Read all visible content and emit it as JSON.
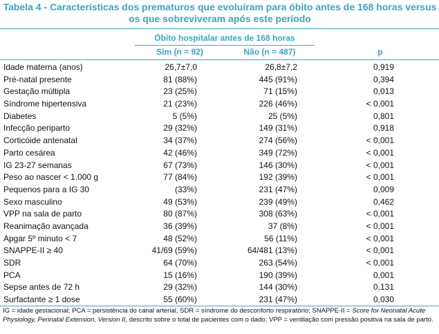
{
  "title": "Tabela 4 - Características dos prematuros que evoluíram para óbito antes de 168 horas versus os que sobreviveram após este período",
  "group_header": "Óbito hospitalar antes de 168 horas",
  "columns": {
    "sim": "Sim (n = 92)",
    "nao": "Não (n = 487)",
    "p": "p"
  },
  "rows": [
    {
      "label": "Idade materna (anos)",
      "sim": "26,7±7,0",
      "nao": "26,8±7,2",
      "p": "0,919"
    },
    {
      "label": "Pré-natal presente",
      "sim": "81 (88%)",
      "nao": "445 (91%)",
      "p": "0,394"
    },
    {
      "label": "Gestação múltipla",
      "sim": "23 (25%)",
      "nao": "71 (15%)",
      "p": "0,013"
    },
    {
      "label": "Síndrome hipertensiva",
      "sim": "21 (23%)",
      "nao": "226 (46%)",
      "p": "< 0,001"
    },
    {
      "label": "Diabetes",
      "sim": "5 (5%)",
      "nao": "25 (5%)",
      "p": "0,801"
    },
    {
      "label": "Infecção periparto",
      "sim": "29 (32%)",
      "nao": "149 (31%)",
      "p": "0,918"
    },
    {
      "label": "Corticóide antenatal",
      "sim": "34 (37%)",
      "nao": "274 (56%)",
      "p": "< 0,001"
    },
    {
      "label": "Parto cesárea",
      "sim": "42 (46%)",
      "nao": "349 (72%)",
      "p": "< 0,001"
    },
    {
      "label": "IG 23-27 semanas",
      "sim": "67 (73%)",
      "nao": "146 (30%)",
      "p": "< 0,001"
    },
    {
      "label": "Peso ao nascer < 1.000 g",
      "sim": "77 (84%)",
      "nao": "192 (39%)",
      "p": "< 0,001"
    },
    {
      "label": "Pequenos para a IG 30",
      "sim": "(33%)",
      "nao": "231 (47%)",
      "p": "0,009"
    },
    {
      "label": "Sexo masculino",
      "sim": "49 (53%)",
      "nao": "239 (49%)",
      "p": "0,462"
    },
    {
      "label": "VPP na sala de parto",
      "sim": "80 (87%)",
      "nao": "308 (63%)",
      "p": "< 0,001"
    },
    {
      "label": "Reanimação avançada",
      "sim": "36 (39%)",
      "nao": "37 (8%)",
      "p": "< 0,001"
    },
    {
      "label": "Apgar 5º minuto < 7",
      "sim": "48 (52%)",
      "nao": "56 (11%)",
      "p": "< 0,001"
    },
    {
      "label": "SNAPPE-II ≥ 40",
      "sim": "41/69 (59%)",
      "nao": "64/481 (13%)",
      "p": "< 0,001"
    },
    {
      "label": "SDR",
      "sim": "64 (70%)",
      "nao": "263 (54%)",
      "p": "< 0,001"
    },
    {
      "label": "PCA",
      "sim": "15 (16%)",
      "nao": "190 (39%)",
      "p": "0,001"
    },
    {
      "label": "Sepse antes de 72 h",
      "sim": "29 (32%)",
      "nao": "144 (30%)",
      "p": "0,131"
    },
    {
      "label": "Surfactante ≥ 1 dose",
      "sim": "55 (60%)",
      "nao": "231 (47%)",
      "p": "0,030"
    }
  ],
  "footnote": {
    "part1": "IG = idade gestacional; PCA = persistência do canal arterial, SDR = síndrome do desconforto respiratório; SNAPPE-II = ",
    "italic": "Score for Neonatal Acute Physiology, Perinatal Extension, Version II,",
    "part2": " descrito sobre o total de pacientes com o dado; VPP = ventilação com pressão positiva na sala de parto."
  }
}
